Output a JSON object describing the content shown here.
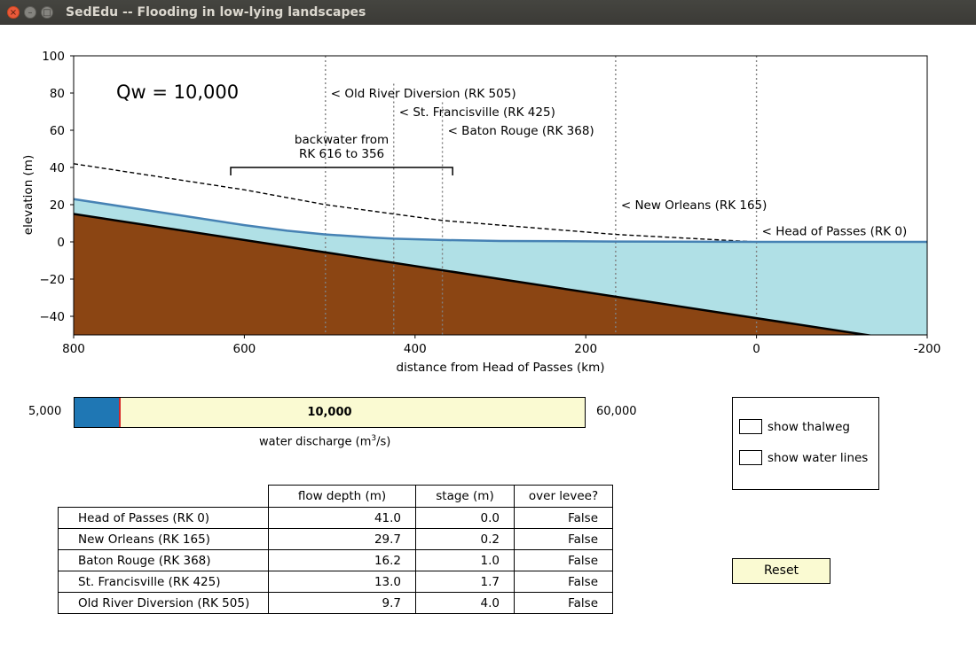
{
  "window": {
    "title": "SedEdu -- Flooding in low-lying landscapes",
    "close": "×",
    "minimize": "–",
    "maximize": "□"
  },
  "chart_data": {
    "type": "area",
    "xlabel": "distance from Head of Passes (km)",
    "ylabel": "elevation (m)",
    "xlim": [
      800,
      -200
    ],
    "ylim": [
      -50,
      100
    ],
    "xticks": [
      800,
      600,
      400,
      200,
      0,
      -200
    ],
    "xtick_labels": [
      "800",
      "600",
      "400",
      "200",
      "0",
      "-200"
    ],
    "yticks": [
      100,
      80,
      60,
      40,
      20,
      0,
      -20,
      -40
    ],
    "ytick_labels": [
      "100",
      "80",
      "60",
      "40",
      "20",
      "0",
      "−20",
      "−40"
    ],
    "annotation": "Qw = 10,000",
    "backwater_label_line1": "backwater from",
    "backwater_label_line2": "RK 616 to 356",
    "backwater_range": [
      616,
      356
    ],
    "series": [
      {
        "x": [
          800,
          0,
          -200
        ],
        "y": [
          15,
          -41,
          -55
        ]
      },
      {
        "x": [
          800,
          700,
          600,
          550,
          505,
          450,
          425,
          368,
          300,
          165,
          100,
          0,
          -200
        ],
        "y": [
          23,
          16,
          9,
          6,
          4,
          2.3,
          1.7,
          1.0,
          0.5,
          0.2,
          0.1,
          0,
          0
        ]
      },
      {
        "x": [
          800,
          600,
          505,
          425,
          368,
          165,
          0
        ],
        "y": [
          42,
          28,
          20,
          15,
          11.5,
          4,
          0
        ]
      }
    ],
    "colors": {
      "bed": "#8b4513",
      "water": "#b0e0e6",
      "water_line": "#4682b4",
      "bed_line": "#000000"
    },
    "markers": [
      {
        "rk": 505,
        "label": "< Old River Diversion (RK 505)",
        "label_y": 80,
        "line_top": 100,
        "line_bottom": -50
      },
      {
        "rk": 425,
        "label": "< St. Francisville (RK 425)",
        "label_y": 70,
        "line_top": 85,
        "line_bottom": -50
      },
      {
        "rk": 368,
        "label": "< Baton Rouge (RK 368)",
        "label_y": 60,
        "line_top": 75,
        "line_bottom": -50
      },
      {
        "rk": 165,
        "label": "< New Orleans (RK 165)",
        "label_y": 20,
        "line_top": 100,
        "line_bottom": -50
      },
      {
        "rk": 0,
        "label": "< Head of Passes (RK 0)",
        "label_y": 6,
        "line_top": 100,
        "line_bottom": -50
      }
    ]
  },
  "slider": {
    "min_label": "5,000",
    "max_label": "60,000",
    "value_label": "10,000",
    "min": 5000,
    "max": 60000,
    "value": 10000,
    "caption": "water discharge (m",
    "caption_sup": "3",
    "caption_end": "/s)"
  },
  "checkboxes": [
    {
      "label": "show thalweg",
      "checked": false
    },
    {
      "label": "show water lines",
      "checked": false
    }
  ],
  "reset_label": "Reset",
  "table": {
    "headers": [
      "flow depth (m)",
      "stage (m)",
      "over levee?"
    ],
    "rows": [
      {
        "name": "Head of Passes (RK 0)",
        "depth": "41.0",
        "stage": "0.0",
        "over": "False"
      },
      {
        "name": "New Orleans (RK 165)",
        "depth": "29.7",
        "stage": "0.2",
        "over": "False"
      },
      {
        "name": "Baton Rouge (RK 368)",
        "depth": "16.2",
        "stage": "1.0",
        "over": "False"
      },
      {
        "name": "St. Francisville (RK 425)",
        "depth": "13.0",
        "stage": "1.7",
        "over": "False"
      },
      {
        "name": "Old River Diversion (RK 505)",
        "depth": "9.7",
        "stage": "4.0",
        "over": "False"
      }
    ]
  }
}
